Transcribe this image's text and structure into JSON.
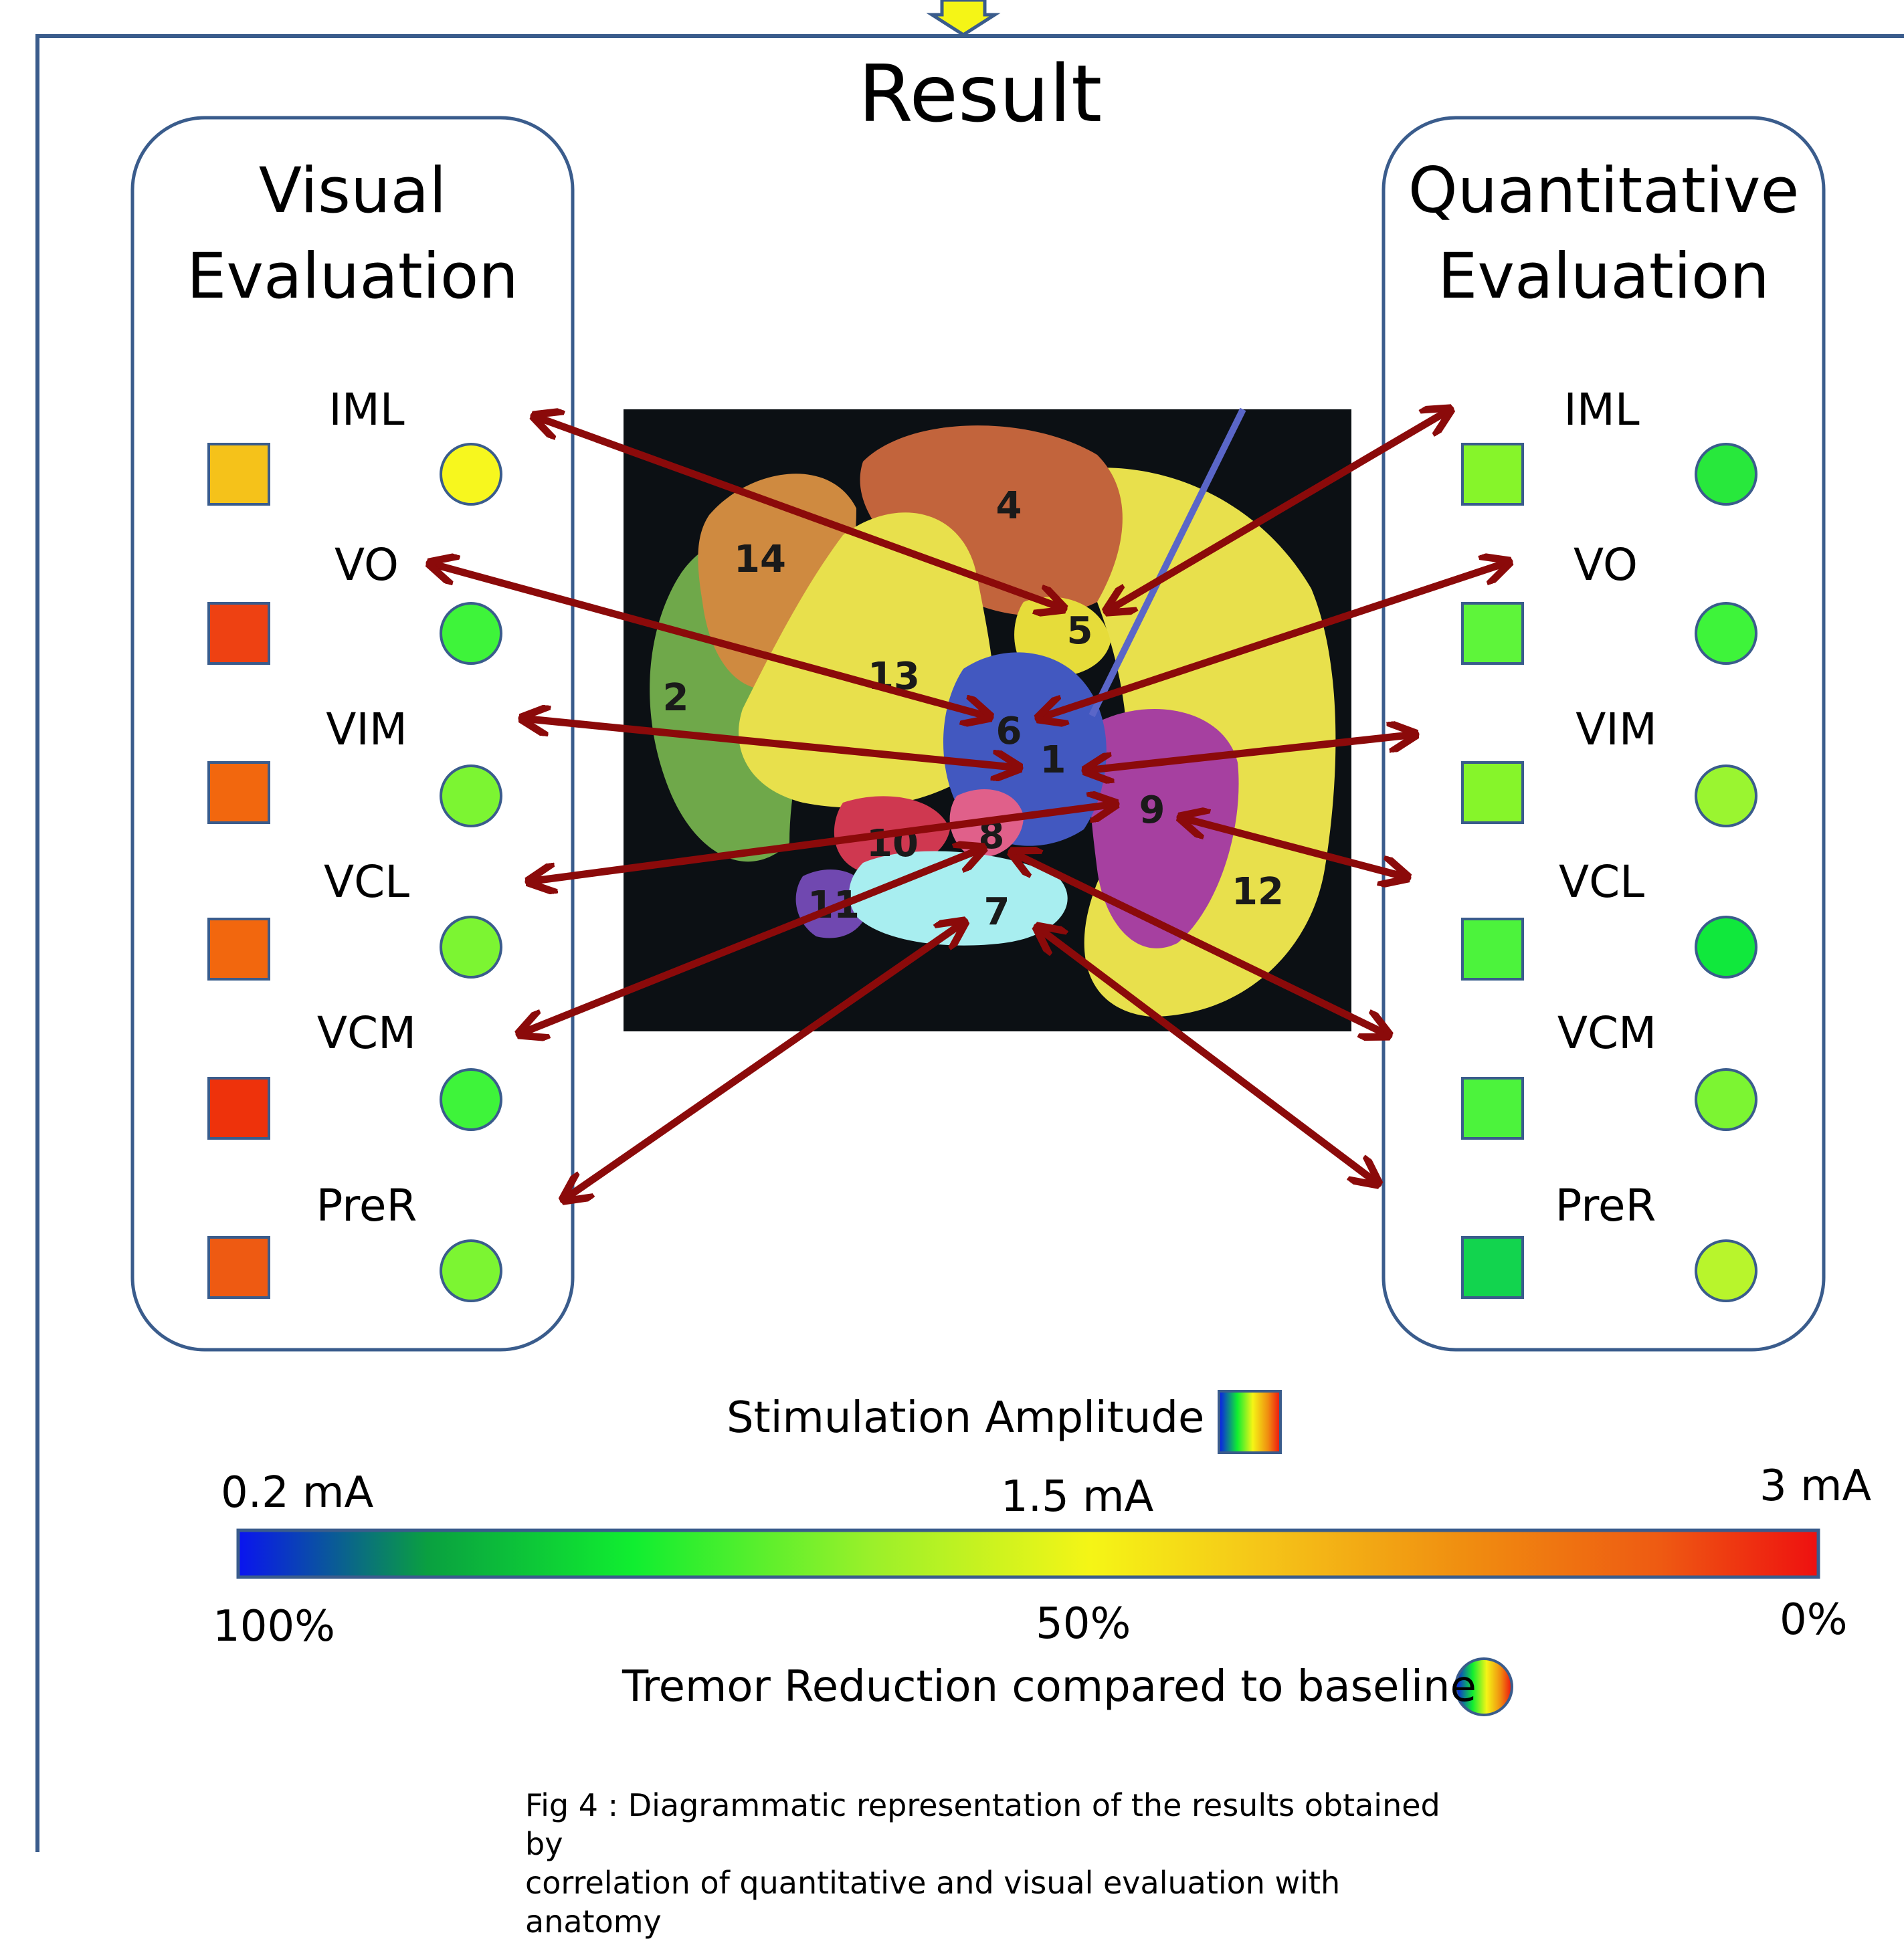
{
  "title": "Result",
  "visual_panel": {
    "title_line1": "Visual",
    "title_line2": "Evaluation",
    "rows": [
      {
        "label": "IML",
        "square_color": "#f5c21a",
        "circle_color": "#f7f71e"
      },
      {
        "label": "VO",
        "square_color": "#ee4112",
        "circle_color": "#3ef43a"
      },
      {
        "label": "VIM",
        "square_color": "#f2670e",
        "circle_color": "#7cf532"
      },
      {
        "label": "VCL",
        "square_color": "#f2670e",
        "circle_color": "#7cf532"
      },
      {
        "label": "VCM",
        "square_color": "#ee320b",
        "circle_color": "#3ef43a"
      },
      {
        "label": "PreR",
        "square_color": "#ee5a12",
        "circle_color": "#7cf532"
      }
    ]
  },
  "quantitative_panel": {
    "title_line1": "Quantitative",
    "title_line2": "Evaluation",
    "rows": [
      {
        "label": "IML",
        "square_color": "#86f52a",
        "circle_color": "#28e83c"
      },
      {
        "label": "VO",
        "square_color": "#5ef53a",
        "circle_color": "#3ef43a"
      },
      {
        "label": "VIM",
        "square_color": "#86f52a",
        "circle_color": "#9af530"
      },
      {
        "label": "VCL",
        "square_color": "#4cf33c",
        "circle_color": "#10e83c"
      },
      {
        "label": "VCM",
        "square_color": "#4cf33c",
        "circle_color": "#7cf532"
      },
      {
        "label": "PreR",
        "square_color": "#12d44e",
        "circle_color": "#b8f52c"
      }
    ]
  },
  "brain_regions": [
    "1",
    "2",
    "4",
    "5",
    "6",
    "7",
    "8",
    "9",
    "10",
    "11",
    "12",
    "13",
    "14"
  ],
  "stimulation_legend": {
    "label": "Stimulation Amplitude",
    "min_label": "0.2 mA",
    "mid_label": "1.5 mA",
    "max_label": "3 mA"
  },
  "tremor_legend": {
    "label": "Tremor Reduction compared to baseline",
    "left_label": "100%",
    "mid_label": "50%",
    "right_label": "0%"
  },
  "colors": {
    "frame": "#3a5c8c",
    "arrow": "#8b0a0a",
    "scale_stops": [
      "#0a14f0",
      "#0aa040",
      "#10ee30",
      "#9af02a",
      "#f5f516",
      "#f5c418",
      "#f08c10",
      "#ee5a12",
      "#ee1010"
    ]
  },
  "caption": {
    "line1": "Fig 4 : Diagrammatic representation of the results obtained by",
    "line2": "correlation of quantitative and visual evaluation with anatomy"
  }
}
